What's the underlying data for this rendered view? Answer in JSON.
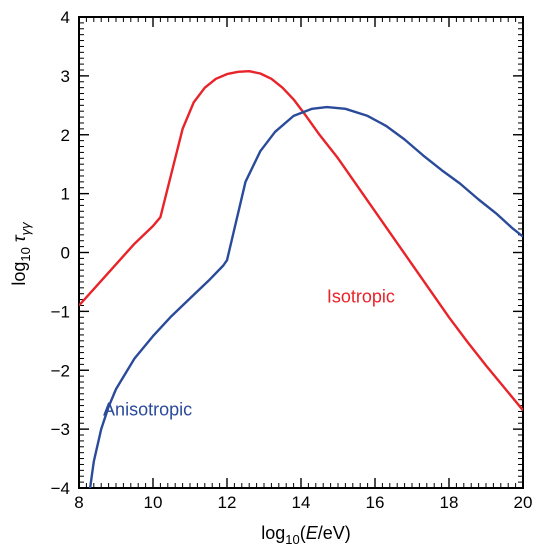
{
  "chart_data": {
    "type": "line",
    "xlabel": {
      "prefix": "log",
      "sub": "10",
      "open": "(",
      "var": "E",
      "unit": "/eV)"
    },
    "ylabel": {
      "prefix": "log",
      "sub": "10",
      "var": "τ",
      "varsub": "γγ"
    },
    "xlim": [
      8,
      20
    ],
    "ylim": [
      -4,
      4
    ],
    "x_major_ticks": [
      8,
      10,
      12,
      14,
      16,
      18,
      20
    ],
    "x_tick_labels": [
      "8",
      "10",
      "12",
      "14",
      "16",
      "18",
      "20"
    ],
    "y_major_ticks": [
      -4,
      -3,
      -2,
      -1,
      0,
      1,
      2,
      3,
      4
    ],
    "y_tick_labels": [
      "−4",
      "−3",
      "−2",
      "−1",
      "0",
      "1",
      "2",
      "3",
      "4"
    ],
    "grid": false,
    "series": [
      {
        "name": "Isotropic",
        "color": "#e8232a",
        "label_at": [
          14.7,
          -0.85
        ],
        "points": [
          [
            8.0,
            -0.9
          ],
          [
            8.5,
            -0.55
          ],
          [
            9.0,
            -0.2
          ],
          [
            9.5,
            0.15
          ],
          [
            10.0,
            0.45
          ],
          [
            10.2,
            0.6
          ],
          [
            10.5,
            1.35
          ],
          [
            10.8,
            2.1
          ],
          [
            11.1,
            2.55
          ],
          [
            11.4,
            2.8
          ],
          [
            11.7,
            2.95
          ],
          [
            12.0,
            3.03
          ],
          [
            12.3,
            3.07
          ],
          [
            12.6,
            3.08
          ],
          [
            12.9,
            3.04
          ],
          [
            13.2,
            2.95
          ],
          [
            13.5,
            2.8
          ],
          [
            13.8,
            2.6
          ],
          [
            14.1,
            2.35
          ],
          [
            14.5,
            2.0
          ],
          [
            15.0,
            1.6
          ],
          [
            15.5,
            1.15
          ],
          [
            16.0,
            0.7
          ],
          [
            16.5,
            0.25
          ],
          [
            17.0,
            -0.2
          ],
          [
            17.5,
            -0.65
          ],
          [
            18.0,
            -1.1
          ],
          [
            18.5,
            -1.52
          ],
          [
            19.0,
            -1.92
          ],
          [
            19.5,
            -2.3
          ],
          [
            20.0,
            -2.68
          ]
        ]
      },
      {
        "name": "Anisotropic",
        "color": "#2a4a9a",
        "label_at": [
          8.65,
          -2.77
        ],
        "points": [
          [
            8.3,
            -4.0
          ],
          [
            8.4,
            -3.55
          ],
          [
            8.6,
            -3.0
          ],
          [
            8.8,
            -2.62
          ],
          [
            9.0,
            -2.32
          ],
          [
            9.5,
            -1.8
          ],
          [
            10.0,
            -1.42
          ],
          [
            10.5,
            -1.08
          ],
          [
            11.0,
            -0.78
          ],
          [
            11.5,
            -0.48
          ],
          [
            11.9,
            -0.22
          ],
          [
            12.0,
            -0.13
          ],
          [
            12.2,
            0.4
          ],
          [
            12.5,
            1.2
          ],
          [
            12.9,
            1.72
          ],
          [
            13.3,
            2.05
          ],
          [
            13.8,
            2.32
          ],
          [
            14.3,
            2.44
          ],
          [
            14.7,
            2.47
          ],
          [
            15.2,
            2.44
          ],
          [
            15.8,
            2.32
          ],
          [
            16.3,
            2.15
          ],
          [
            16.8,
            1.92
          ],
          [
            17.3,
            1.65
          ],
          [
            17.8,
            1.4
          ],
          [
            18.3,
            1.17
          ],
          [
            18.8,
            0.9
          ],
          [
            19.3,
            0.65
          ],
          [
            19.7,
            0.42
          ],
          [
            20.0,
            0.27
          ]
        ]
      }
    ]
  }
}
